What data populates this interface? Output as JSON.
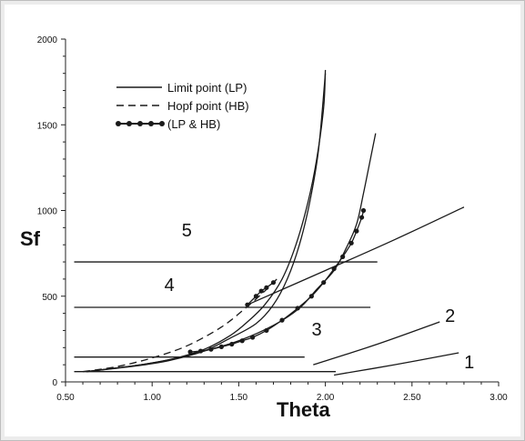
{
  "chart_data": {
    "type": "line",
    "xlabel": "Theta",
    "ylabel": "Sf",
    "xlim": [
      0.5,
      3.0
    ],
    "ylim": [
      0,
      2000
    ],
    "x_ticks": [
      "0.50",
      "1.00",
      "1.50",
      "2.00",
      "2.50",
      "3.00"
    ],
    "y_ticks": [
      "0",
      "500",
      "1000",
      "1500",
      "2000"
    ],
    "legend": [
      {
        "label": "Limit point (LP)",
        "style": "solid"
      },
      {
        "label": "Hopf point (HB)",
        "style": "dashed"
      },
      {
        "label": "(LP & HB)",
        "style": "solid-dots"
      }
    ],
    "series": [
      {
        "style": "solid",
        "points": [
          [
            0.62,
            60
          ],
          [
            0.9,
            95
          ],
          [
            1.1,
            130
          ],
          [
            1.3,
            190
          ],
          [
            1.45,
            270
          ],
          [
            1.55,
            350
          ],
          [
            1.65,
            450
          ],
          [
            1.75,
            600
          ],
          [
            1.83,
            800
          ],
          [
            1.9,
            1050
          ],
          [
            1.95,
            1300
          ],
          [
            1.99,
            1600
          ],
          [
            2.0,
            1820
          ]
        ]
      },
      {
        "style": "solid",
        "points": [
          [
            0.62,
            60
          ],
          [
            0.9,
            92
          ],
          [
            1.1,
            125
          ],
          [
            1.3,
            180
          ],
          [
            1.45,
            255
          ],
          [
            1.6,
            340
          ],
          [
            1.7,
            450
          ],
          [
            1.78,
            600
          ],
          [
            1.85,
            800
          ],
          [
            1.91,
            1050
          ],
          [
            1.96,
            1350
          ],
          [
            2.0,
            1800
          ]
        ]
      },
      {
        "style": "dashed",
        "points": [
          [
            0.6,
            60
          ],
          [
            0.8,
            90
          ],
          [
            1.0,
            140
          ],
          [
            1.2,
            210
          ],
          [
            1.4,
            320
          ],
          [
            1.55,
            440
          ],
          [
            1.65,
            530
          ],
          [
            1.72,
            600
          ]
        ]
      },
      {
        "style": "solid",
        "points": [
          [
            0.62,
            60
          ],
          [
            0.9,
            95
          ],
          [
            1.1,
            130
          ],
          [
            1.3,
            180
          ],
          [
            1.5,
            240
          ],
          [
            1.7,
            330
          ],
          [
            1.85,
            430
          ],
          [
            1.95,
            540
          ],
          [
            2.05,
            650
          ],
          [
            2.12,
            780
          ],
          [
            2.18,
            920
          ],
          [
            2.22,
            1100
          ],
          [
            2.26,
            1300
          ],
          [
            2.29,
            1450
          ]
        ]
      },
      {
        "style": "solid-dots",
        "points": [
          [
            1.22,
            175
          ],
          [
            1.28,
            180
          ],
          [
            1.34,
            190
          ],
          [
            1.4,
            205
          ],
          [
            1.46,
            220
          ],
          [
            1.52,
            240
          ],
          [
            1.58,
            260
          ],
          [
            1.66,
            300
          ],
          [
            1.75,
            360
          ],
          [
            1.84,
            430
          ],
          [
            1.92,
            500
          ],
          [
            1.99,
            580
          ],
          [
            2.05,
            660
          ],
          [
            2.1,
            730
          ],
          [
            2.15,
            810
          ],
          [
            2.18,
            880
          ],
          [
            2.21,
            960
          ],
          [
            2.22,
            1000
          ]
        ]
      },
      {
        "style": "solid-dots",
        "points": [
          [
            1.55,
            450
          ],
          [
            1.6,
            500
          ],
          [
            1.63,
            530
          ],
          [
            1.66,
            550
          ],
          [
            1.7,
            580
          ]
        ]
      },
      {
        "style": "solid",
        "points": [
          [
            1.55,
            450
          ],
          [
            2.0,
            650
          ],
          [
            2.4,
            830
          ],
          [
            2.8,
            1020
          ]
        ]
      },
      {
        "style": "solid",
        "points": [
          [
            1.93,
            100
          ],
          [
            2.3,
            220
          ],
          [
            2.66,
            350
          ]
        ]
      },
      {
        "style": "solid",
        "points": [
          [
            2.05,
            40
          ],
          [
            2.4,
            100
          ],
          [
            2.77,
            170
          ]
        ]
      },
      {
        "style": "solid",
        "points": [
          [
            0.55,
            60
          ],
          [
            2.06,
            60
          ]
        ]
      },
      {
        "style": "solid",
        "points": [
          [
            0.55,
            145
          ],
          [
            1.88,
            145
          ]
        ]
      },
      {
        "style": "solid",
        "points": [
          [
            0.55,
            435
          ],
          [
            2.26,
            435
          ]
        ]
      },
      {
        "style": "solid",
        "points": [
          [
            0.55,
            700
          ],
          [
            2.3,
            700
          ]
        ]
      }
    ],
    "annotations": [
      {
        "text": "5",
        "x": 1.2,
        "y": 850
      },
      {
        "text": "4",
        "x": 1.1,
        "y": 530
      },
      {
        "text": "3",
        "x": 1.95,
        "y": 270
      },
      {
        "text": "2",
        "x": 2.72,
        "y": 350
      },
      {
        "text": "1",
        "x": 2.83,
        "y": 80
      }
    ]
  }
}
